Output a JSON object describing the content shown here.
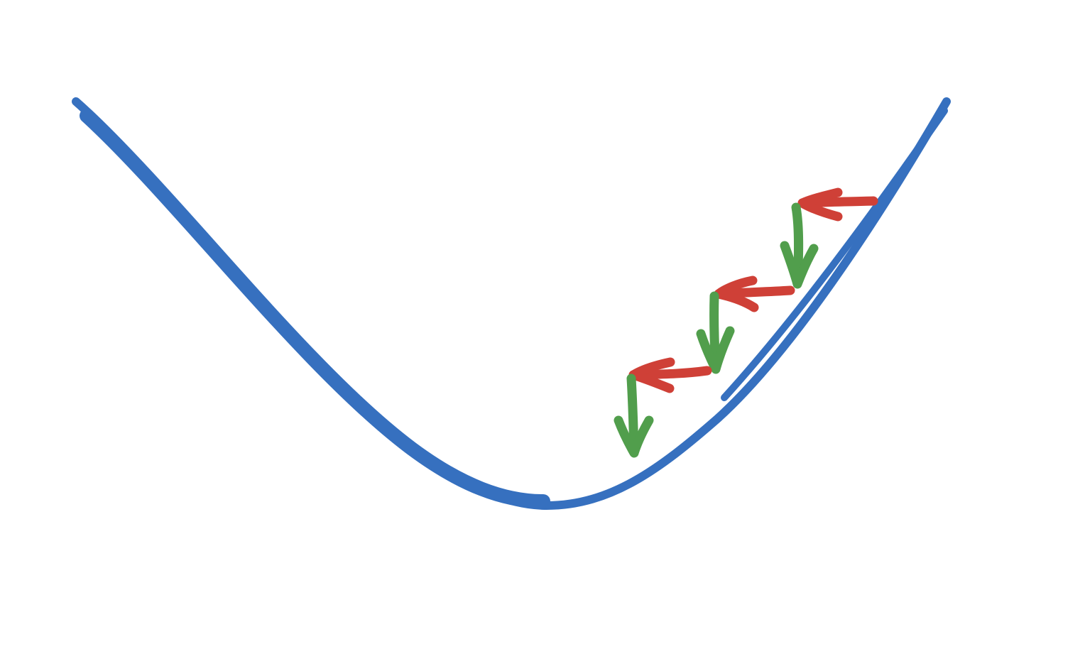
{
  "diagram": {
    "colors": {
      "curve": "#3670BF",
      "horizontal_step": "#CF4037",
      "vertical_step": "#519E4C",
      "background": "#FFFFFF"
    },
    "curve": {
      "shape": "convex-valley"
    },
    "steps": [
      {
        "index": 1,
        "direction": "left",
        "color_key": "horizontal_step"
      },
      {
        "index": 2,
        "direction": "down",
        "color_key": "vertical_step"
      },
      {
        "index": 3,
        "direction": "left",
        "color_key": "horizontal_step"
      },
      {
        "index": 4,
        "direction": "down",
        "color_key": "vertical_step"
      },
      {
        "index": 5,
        "direction": "left",
        "color_key": "horizontal_step"
      },
      {
        "index": 6,
        "direction": "down",
        "color_key": "vertical_step"
      }
    ]
  }
}
